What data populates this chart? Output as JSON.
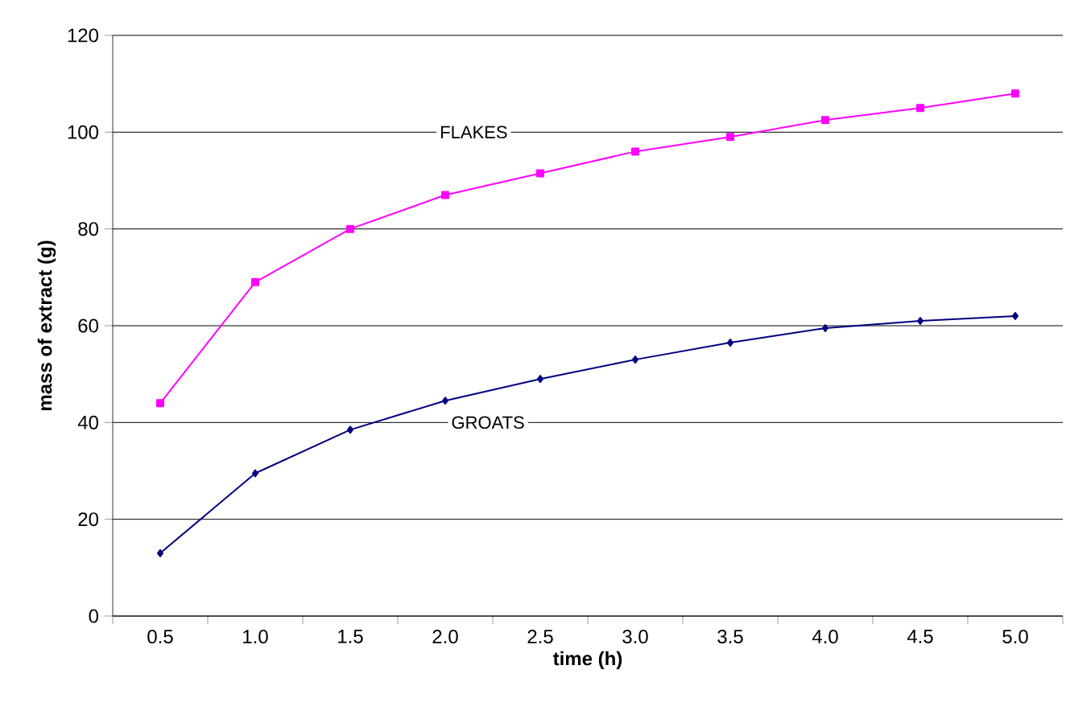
{
  "chart_data": {
    "type": "line",
    "xlabel": "time (h)",
    "ylabel": "mass of extract (g)",
    "categories": [
      "0.5",
      "1.0",
      "1.5",
      "2.0",
      "2.5",
      "3.0",
      "3.5",
      "4.0",
      "4.5",
      "5.0"
    ],
    "series": [
      {
        "name": "FLAKES",
        "color": "#ff00ff",
        "marker": "square",
        "values": [
          44,
          69,
          80,
          87,
          91.5,
          96,
          99,
          102.5,
          105,
          108
        ]
      },
      {
        "name": "GROATS",
        "color": "#000080",
        "marker": "diamond",
        "values": [
          13,
          29.5,
          38.5,
          44.5,
          49,
          53,
          56.5,
          59.5,
          61,
          62
        ]
      }
    ],
    "ylim": [
      0,
      120
    ],
    "yticks": [
      0,
      20,
      40,
      60,
      80,
      100,
      120
    ],
    "grid": "y"
  }
}
